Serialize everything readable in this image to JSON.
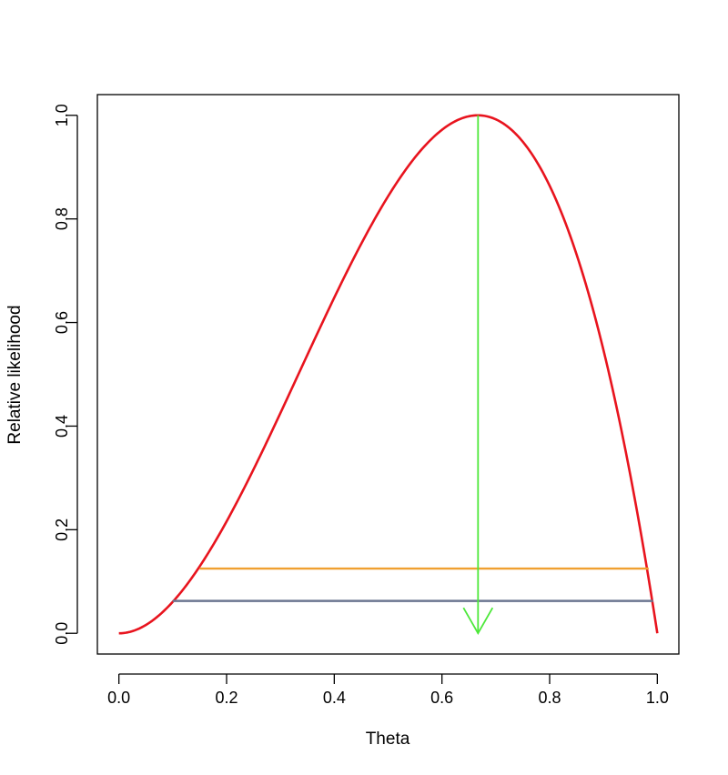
{
  "chart_data": {
    "type": "line",
    "title": "",
    "xlabel": "Theta",
    "ylabel": "Relative likelihood",
    "xlim": [
      -0.04,
      1.04
    ],
    "ylim": [
      -0.04,
      1.04
    ],
    "xticks": [
      0.0,
      0.2,
      0.4,
      0.6,
      0.8,
      1.0
    ],
    "xtick_labels": [
      "0.0",
      "0.2",
      "0.4",
      "0.6",
      "0.8",
      "1.0"
    ],
    "yticks": [
      0.0,
      0.2,
      0.4,
      0.6,
      0.8,
      1.0
    ],
    "ytick_labels": [
      "0.0",
      "0.2",
      "0.4",
      "0.6",
      "0.8",
      "1.0"
    ],
    "grid": false,
    "curve": {
      "name": "relative likelihood",
      "color": "#e8141e",
      "formula": "6.75 * theta^2 * (1 - theta)",
      "theta_range": [
        0.0,
        1.0
      ]
    },
    "segments": [
      {
        "name": "likelihood-interval-1-8",
        "color": "#f0a030",
        "x_start": 0.15,
        "x_end": 0.984,
        "y": 0.125
      },
      {
        "name": "likelihood-interval-1-16",
        "color": "#6b7690",
        "x_start": 0.1,
        "x_end": 0.992,
        "y": 0.0625
      }
    ],
    "arrow": {
      "name": "mle-arrow",
      "color": "#4de83a",
      "x": 0.667,
      "y_from": 1.0,
      "y_to": 0.0
    }
  }
}
